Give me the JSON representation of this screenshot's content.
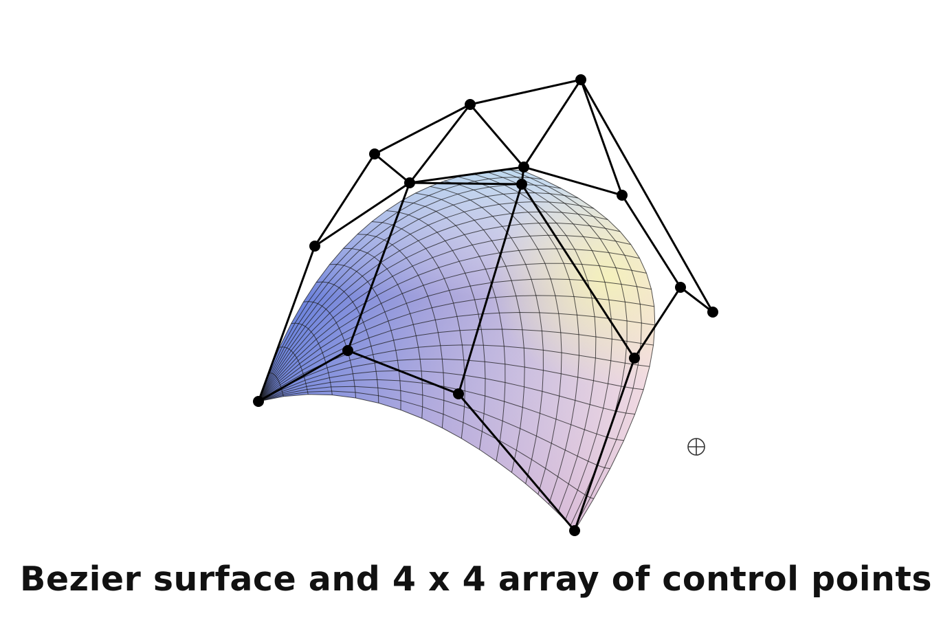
{
  "caption": "Bezier surface and 4 x 4 array of control points",
  "diagram": {
    "control_grid": {
      "rows": 4,
      "cols": 4
    },
    "surface_mesh_divisions": 20,
    "colors": {
      "surface_blue": "#5a78dc",
      "surface_light_blue": "#a8d8f0",
      "surface_yellow": "#f2f0b8",
      "surface_pink": "#e6b8d2",
      "mesh_line": "#1a1a1a",
      "control_net": "#000000",
      "control_point": "#000000"
    },
    "icons": [
      "crosshair-icon"
    ]
  }
}
